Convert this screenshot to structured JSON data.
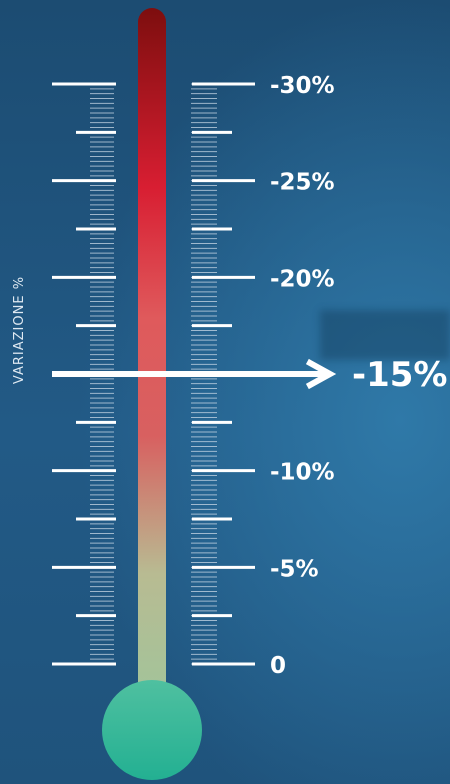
{
  "chart_data": {
    "type": "thermometer",
    "ylabel": "VARIAZIONE %",
    "ylim": [
      0,
      -30
    ],
    "major_ticks": [
      0,
      -5,
      -10,
      -15,
      -20,
      -25,
      -30
    ],
    "tick_labels": [
      {
        "value": -30,
        "text": "-30%"
      },
      {
        "value": -25,
        "text": "-25%"
      },
      {
        "value": -20,
        "text": "-20%"
      },
      {
        "value": -10,
        "text": "-10%"
      },
      {
        "value": -5,
        "text": "-5%"
      },
      {
        "value": 0,
        "text": "0"
      }
    ],
    "marker": {
      "value": -15,
      "text": "-15%"
    },
    "colors": {
      "fill_top": "#7d0e0e",
      "fill_red": "#d81e32",
      "fill_mid": "#dc5a5d",
      "fill_low": "#b6bd95",
      "bulb": "#2fb896",
      "ticks": "#ffffff"
    }
  }
}
